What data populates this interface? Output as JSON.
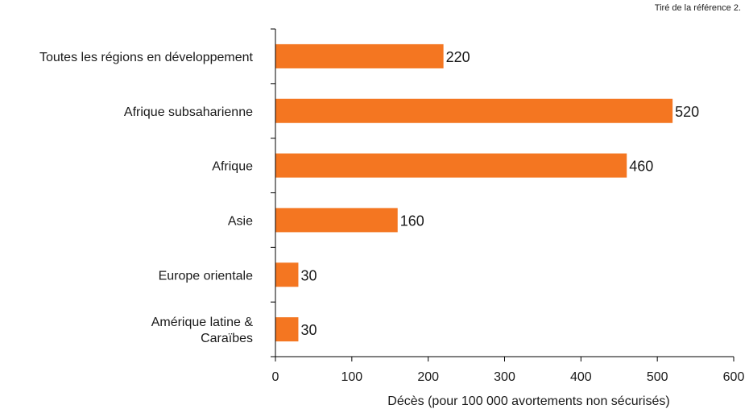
{
  "source_note": "Tiré de la référence 2.",
  "chart_data": {
    "type": "bar",
    "orientation": "horizontal",
    "categories": [
      [
        "Toutes les régions en développement"
      ],
      [
        "Afrique subsaharienne"
      ],
      [
        "Afrique"
      ],
      [
        "Asie"
      ],
      [
        "Europe orientale"
      ],
      [
        "Amérique latine &",
        "Caraïbes"
      ]
    ],
    "values": [
      220,
      520,
      460,
      160,
      30,
      30
    ],
    "value_labels": [
      "220",
      "520",
      "460",
      "160",
      "30",
      "30"
    ],
    "xlabel": "Décès (pour 100 000 avortements non sécurisés)",
    "xlim": [
      0,
      600
    ],
    "xticks": [
      0,
      100,
      200,
      300,
      400,
      500,
      600
    ],
    "bar_color": "#f47621",
    "axis_color": "#000000"
  }
}
